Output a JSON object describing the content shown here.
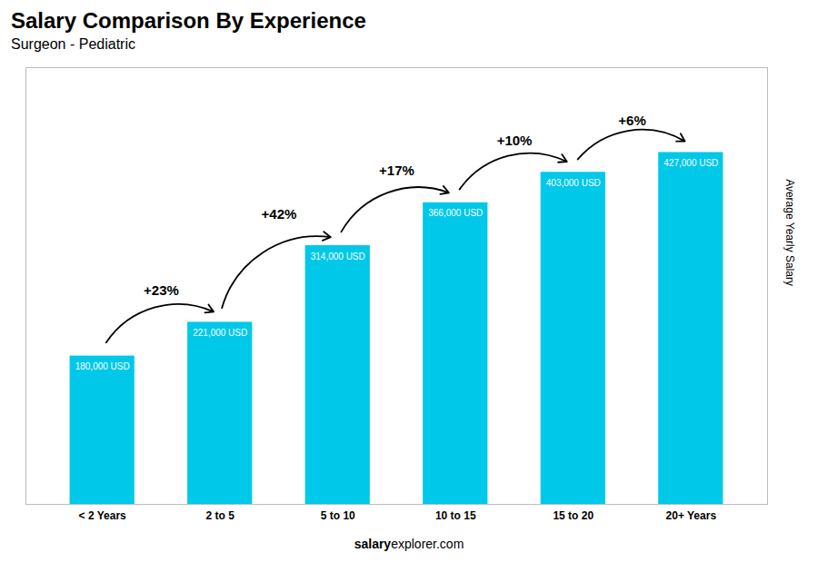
{
  "chart_data": {
    "type": "bar",
    "title": "Salary Comparison By Experience",
    "subtitle": "Surgeon - Pediatric",
    "categories": [
      "< 2 Years",
      "2 to 5",
      "5 to 10",
      "10 to 15",
      "15 to 20",
      "20+ Years"
    ],
    "values": [
      180000,
      221000,
      314000,
      366000,
      403000,
      427000
    ],
    "value_labels": [
      "180,000 USD",
      "221,000 USD",
      "314,000 USD",
      "366,000 USD",
      "403,000 USD",
      "427,000 USD"
    ],
    "data_labels": true,
    "annotations": [
      "+23%",
      "+42%",
      "+17%",
      "+10%",
      "+6%"
    ],
    "ylabel": "Average Yearly Salary",
    "watermark": [
      "salary",
      "explorer.com"
    ],
    "color": "#00c8e8",
    "ylim": [
      0,
      530000
    ],
    "tick_labels": "x",
    "grid": false
  }
}
